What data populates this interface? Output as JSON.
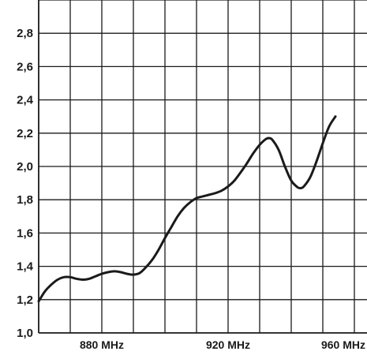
{
  "chart_data": {
    "type": "line",
    "title": "",
    "xlabel": "",
    "ylabel": "",
    "x_unit": "MHz",
    "xlim": [
      860,
      964
    ],
    "ylim": [
      1.0,
      3.0
    ],
    "x_grid_step": 10,
    "y_grid_step": 0.2,
    "grid": true,
    "x_ticks": [
      {
        "value": 880,
        "label": "880 MHz"
      },
      {
        "value": 920,
        "label": "920 MHz"
      },
      {
        "value": 960,
        "label": "960 MHz"
      }
    ],
    "y_ticks": [
      {
        "value": 1.0,
        "label": "1,0"
      },
      {
        "value": 1.2,
        "label": "1,2"
      },
      {
        "value": 1.4,
        "label": "1,4"
      },
      {
        "value": 1.6,
        "label": "1,6"
      },
      {
        "value": 1.8,
        "label": "1,8"
      },
      {
        "value": 2.0,
        "label": "2,0"
      },
      {
        "value": 2.2,
        "label": "2,2"
      },
      {
        "value": 2.4,
        "label": "2,4"
      },
      {
        "value": 2.6,
        "label": "2,6"
      },
      {
        "value": 2.8,
        "label": "2,8"
      }
    ],
    "series": [
      {
        "color": "#1a1a1a",
        "points": [
          [
            860,
            1.19
          ],
          [
            862,
            1.25
          ],
          [
            864,
            1.29
          ],
          [
            866,
            1.32
          ],
          [
            868,
            1.335
          ],
          [
            870,
            1.335
          ],
          [
            872,
            1.325
          ],
          [
            874,
            1.32
          ],
          [
            876,
            1.325
          ],
          [
            878,
            1.34
          ],
          [
            880,
            1.355
          ],
          [
            882,
            1.365
          ],
          [
            884,
            1.37
          ],
          [
            886,
            1.365
          ],
          [
            888,
            1.355
          ],
          [
            890,
            1.35
          ],
          [
            892,
            1.36
          ],
          [
            894,
            1.395
          ],
          [
            896,
            1.44
          ],
          [
            898,
            1.5
          ],
          [
            900,
            1.57
          ],
          [
            902,
            1.635
          ],
          [
            904,
            1.7
          ],
          [
            906,
            1.75
          ],
          [
            908,
            1.785
          ],
          [
            910,
            1.81
          ],
          [
            912,
            1.82
          ],
          [
            914,
            1.83
          ],
          [
            916,
            1.84
          ],
          [
            918,
            1.855
          ],
          [
            920,
            1.88
          ],
          [
            922,
            1.915
          ],
          [
            924,
            1.965
          ],
          [
            926,
            2.02
          ],
          [
            928,
            2.08
          ],
          [
            930,
            2.13
          ],
          [
            932,
            2.165
          ],
          [
            933,
            2.17
          ],
          [
            934,
            2.16
          ],
          [
            936,
            2.1
          ],
          [
            938,
            2.0
          ],
          [
            940,
            1.915
          ],
          [
            942,
            1.875
          ],
          [
            943,
            1.87
          ],
          [
            944,
            1.88
          ],
          [
            946,
            1.935
          ],
          [
            948,
            2.03
          ],
          [
            950,
            2.14
          ],
          [
            952,
            2.24
          ],
          [
            954,
            2.3
          ]
        ]
      }
    ]
  }
}
